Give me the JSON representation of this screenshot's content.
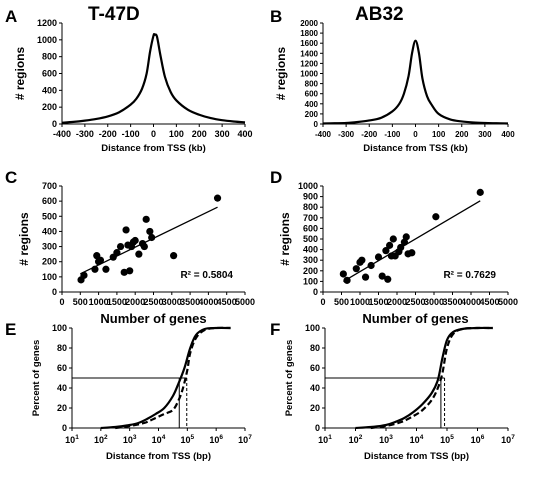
{
  "chart_data": [
    {
      "panel": "A",
      "type": "line",
      "title": "T-47D",
      "xlabel": "Distance from TSS (kb)",
      "ylabel": "# regions",
      "xlim": [
        -400,
        400
      ],
      "ylim": [
        0,
        1200
      ],
      "xticks": [
        -400,
        -300,
        -200,
        -100,
        0,
        100,
        200,
        300,
        400
      ],
      "yticks": [
        0,
        200,
        400,
        600,
        800,
        1000,
        1200
      ],
      "series": [
        {
          "x": [
            -400,
            -350,
            -300,
            -250,
            -200,
            -150,
            -100,
            -75,
            -50,
            -30,
            -15,
            0,
            5,
            15,
            30,
            50,
            75,
            100,
            150,
            200,
            250,
            300,
            350,
            400
          ],
          "y": [
            15,
            25,
            40,
            60,
            90,
            140,
            230,
            300,
            420,
            600,
            860,
            1050,
            1060,
            1040,
            820,
            560,
            380,
            280,
            170,
            110,
            70,
            45,
            30,
            20
          ]
        }
      ]
    },
    {
      "panel": "B",
      "type": "line",
      "title": "AB32",
      "xlabel": "Distance from TSS (kb)",
      "ylabel": "# regions",
      "xlim": [
        -400,
        400
      ],
      "ylim": [
        0,
        2000
      ],
      "xticks": [
        -400,
        -300,
        -200,
        -100,
        0,
        100,
        200,
        300,
        400
      ],
      "yticks": [
        0,
        200,
        400,
        600,
        800,
        1000,
        1200,
        1400,
        1600,
        1800,
        2000
      ],
      "series": [
        {
          "x": [
            -400,
            -350,
            -300,
            -250,
            -200,
            -150,
            -100,
            -70,
            -50,
            -30,
            -15,
            0,
            15,
            30,
            50,
            70,
            100,
            150,
            200,
            250,
            300,
            350,
            400
          ],
          "y": [
            10,
            15,
            20,
            40,
            70,
            120,
            250,
            400,
            600,
            950,
            1400,
            1650,
            1400,
            900,
            550,
            380,
            200,
            90,
            50,
            30,
            20,
            15,
            10
          ]
        }
      ]
    },
    {
      "panel": "C",
      "type": "scatter",
      "xlabel": "Number of genes",
      "ylabel": "# regions",
      "xlim": [
        0,
        5000
      ],
      "ylim": [
        0,
        700
      ],
      "xticks": [
        0,
        500,
        1000,
        1500,
        2000,
        2500,
        3000,
        3500,
        4000,
        4500,
        5000
      ],
      "yticks": [
        0,
        100,
        200,
        300,
        400,
        500,
        600,
        700
      ],
      "annotation": "R² = 0.5804",
      "trendline": {
        "x": [
          500,
          4250
        ],
        "y": [
          120,
          560
        ]
      },
      "points": {
        "x": [
          520,
          600,
          900,
          950,
          1000,
          1050,
          1200,
          1400,
          1500,
          1600,
          1700,
          1750,
          1800,
          1850,
          1900,
          1950,
          2000,
          2100,
          2200,
          2250,
          2300,
          2400,
          2450,
          3050,
          4250
        ],
        "y": [
          80,
          110,
          150,
          240,
          200,
          210,
          150,
          230,
          260,
          300,
          130,
          410,
          310,
          140,
          300,
          330,
          340,
          250,
          320,
          300,
          480,
          400,
          360,
          240,
          620
        ]
      }
    },
    {
      "panel": "D",
      "type": "scatter",
      "xlabel": "Number of genes",
      "ylabel": "# regions",
      "xlim": [
        0,
        5000
      ],
      "ylim": [
        0,
        1000
      ],
      "xticks": [
        0,
        500,
        1000,
        1500,
        2000,
        2500,
        3000,
        3500,
        4000,
        4500,
        5000
      ],
      "yticks": [
        0,
        100,
        200,
        300,
        400,
        500,
        600,
        700,
        800,
        900,
        1000
      ],
      "annotation": "R² = 0.7629",
      "trendline": {
        "x": [
          550,
          4250
        ],
        "y": [
          100,
          860
        ]
      },
      "points": {
        "x": [
          550,
          650,
          900,
          1000,
          1050,
          1150,
          1300,
          1500,
          1600,
          1700,
          1750,
          1800,
          1850,
          1900,
          1950,
          2050,
          2100,
          2200,
          2250,
          2300,
          2400,
          3050,
          4250
        ],
        "y": [
          170,
          110,
          220,
          280,
          300,
          140,
          250,
          330,
          150,
          390,
          120,
          440,
          340,
          500,
          340,
          380,
          420,
          470,
          520,
          360,
          370,
          710,
          940
        ]
      }
    },
    {
      "panel": "E",
      "type": "line",
      "xlabel": "Distance from TSS (bp)",
      "ylabel": "Percent of genes",
      "xscale": "log",
      "xticks_exp": [
        1,
        2,
        3,
        4,
        5,
        6,
        7
      ],
      "yticks": [
        0,
        20,
        40,
        60,
        80,
        100
      ],
      "ylim": [
        0,
        100
      ],
      "reference_line_y": 50,
      "series": [
        {
          "style": "solid",
          "log10x": [
            2.0,
            2.5,
            3.0,
            3.3,
            3.6,
            3.9,
            4.2,
            4.5,
            4.7,
            4.9,
            5.1,
            5.3,
            5.6,
            6.0,
            6.5
          ],
          "y": [
            0,
            1,
            3,
            5,
            9,
            14,
            20,
            32,
            45,
            60,
            80,
            93,
            99,
            100,
            100
          ]
        },
        {
          "style": "dashed",
          "log10x": [
            2.5,
            3.0,
            3.5,
            3.9,
            4.2,
            4.5,
            4.7,
            4.85,
            5.0,
            5.1,
            5.3,
            5.6,
            6.0,
            6.5
          ],
          "y": [
            0,
            2,
            5,
            10,
            14,
            18,
            28,
            40,
            58,
            75,
            90,
            98,
            100,
            100
          ]
        }
      ],
      "median_markers_log10x": [
        4.72,
        4.98
      ]
    },
    {
      "panel": "F",
      "type": "line",
      "xlabel": "Distance from TSS (bp)",
      "ylabel": "Percent of genes",
      "xscale": "log",
      "xticks_exp": [
        1,
        2,
        3,
        4,
        5,
        6,
        7
      ],
      "yticks": [
        0,
        20,
        40,
        60,
        80,
        100
      ],
      "ylim": [
        0,
        100
      ],
      "reference_line_y": 50,
      "series": [
        {
          "style": "solid",
          "log10x": [
            2.0,
            2.5,
            3.0,
            3.3,
            3.6,
            3.9,
            4.2,
            4.5,
            4.7,
            4.85,
            5.0,
            5.2,
            5.5,
            6.0,
            6.5
          ],
          "y": [
            0,
            1,
            3,
            6,
            10,
            16,
            24,
            35,
            48,
            70,
            88,
            96,
            99,
            100,
            100
          ]
        },
        {
          "style": "dashed",
          "log10x": [
            2.5,
            3.0,
            3.5,
            3.9,
            4.2,
            4.5,
            4.7,
            4.85,
            5.0,
            5.2,
            5.5,
            6.0,
            6.5
          ],
          "y": [
            0,
            2,
            6,
            12,
            18,
            28,
            40,
            55,
            80,
            94,
            99,
            100,
            100
          ]
        }
      ],
      "median_markers_log10x": [
        4.8,
        4.92
      ]
    }
  ]
}
